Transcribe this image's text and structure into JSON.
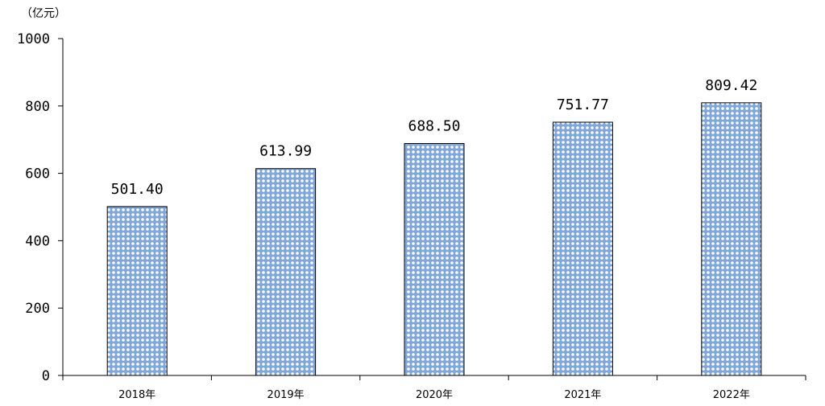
{
  "chart_data": {
    "type": "bar",
    "unit_label": "（亿元）",
    "categories": [
      "2018年",
      "2019年",
      "2020年",
      "2021年",
      "2022年"
    ],
    "values": [
      501.4,
      613.99,
      688.5,
      751.77,
      809.42
    ],
    "value_labels": [
      "501.40",
      "613.99",
      "688.50",
      "751.77",
      "809.42"
    ],
    "ylim": [
      0,
      1000
    ],
    "yticks": [
      0,
      200,
      400,
      600,
      800,
      1000
    ],
    "grid": false,
    "bar_color": "#7fa7d9",
    "bar_pattern_color": "#ffffff"
  }
}
